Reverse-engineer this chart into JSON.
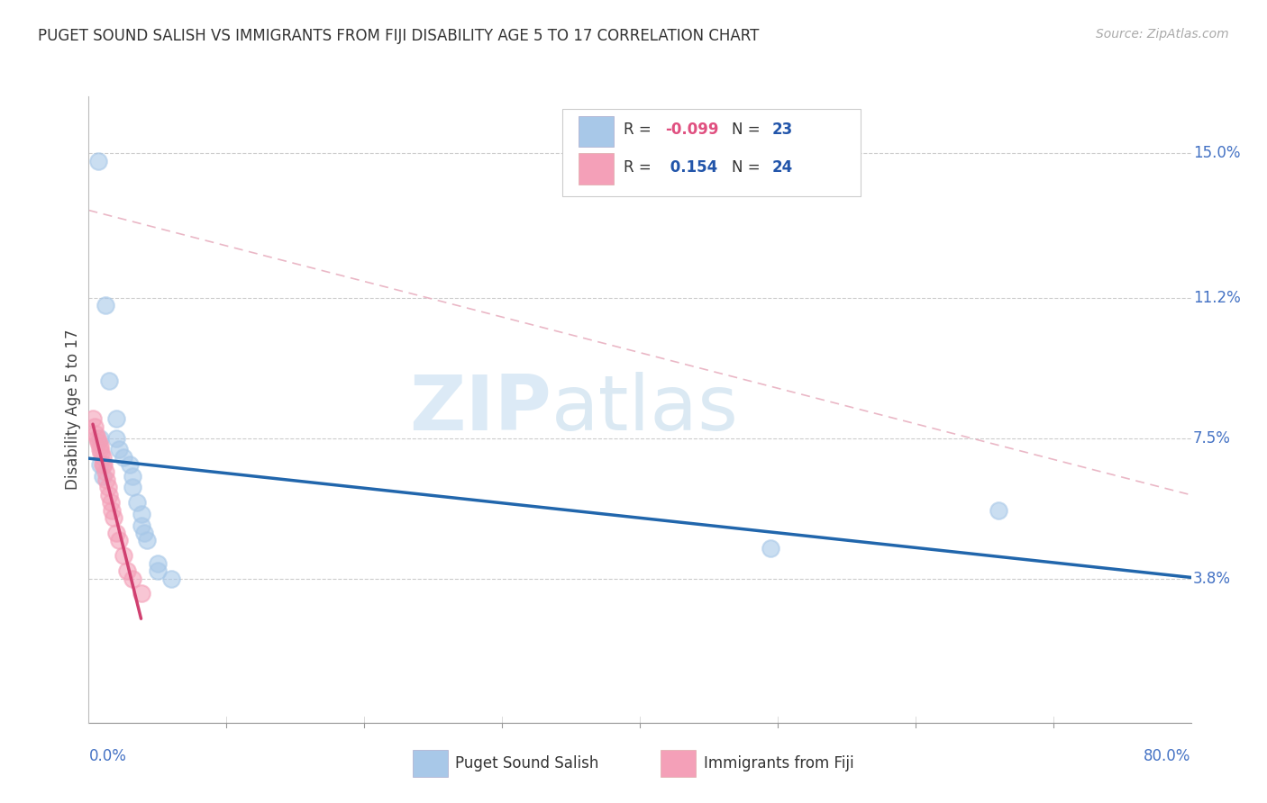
{
  "title": "PUGET SOUND SALISH VS IMMIGRANTS FROM FIJI DISABILITY AGE 5 TO 17 CORRELATION CHART",
  "source": "Source: ZipAtlas.com",
  "ylabel_label": "Disability Age 5 to 17",
  "legend_label1": "Puget Sound Salish",
  "legend_label2": "Immigrants from Fiji",
  "R1": "-0.099",
  "N1": "23",
  "R2": "0.154",
  "N2": "24",
  "color1": "#a8c8e8",
  "color2": "#f4a0b8",
  "trendline1_color": "#2166ac",
  "trendline2_color": "#d04070",
  "diagonal_color": "#d8a8b8",
  "xlim": [
    0.0,
    0.8
  ],
  "ylim": [
    0.0,
    0.165
  ],
  "ytick_vals": [
    0.038,
    0.075,
    0.112,
    0.15
  ],
  "xtick_vals": [
    0.0,
    0.8
  ],
  "puget_x": [
    0.007,
    0.012,
    0.015,
    0.02,
    0.02,
    0.022,
    0.025,
    0.03,
    0.032,
    0.032,
    0.035,
    0.038,
    0.038,
    0.04,
    0.042,
    0.05,
    0.05,
    0.06,
    0.008,
    0.008,
    0.01,
    0.495,
    0.66
  ],
  "puget_y": [
    0.148,
    0.11,
    0.09,
    0.08,
    0.075,
    0.072,
    0.07,
    0.068,
    0.065,
    0.062,
    0.058,
    0.055,
    0.052,
    0.05,
    0.048,
    0.042,
    0.04,
    0.038,
    0.075,
    0.068,
    0.065,
    0.046,
    0.056
  ],
  "fiji_x": [
    0.003,
    0.004,
    0.005,
    0.006,
    0.007,
    0.008,
    0.008,
    0.009,
    0.01,
    0.011,
    0.012,
    0.013,
    0.014,
    0.015,
    0.016,
    0.017,
    0.018,
    0.02,
    0.022,
    0.025,
    0.028,
    0.032,
    0.038,
    0.01
  ],
  "fiji_y": [
    0.08,
    0.078,
    0.076,
    0.075,
    0.074,
    0.073,
    0.072,
    0.071,
    0.07,
    0.068,
    0.066,
    0.064,
    0.062,
    0.06,
    0.058,
    0.056,
    0.054,
    0.05,
    0.048,
    0.044,
    0.04,
    0.038,
    0.034,
    0.068
  ],
  "watermark_zip": "ZIP",
  "watermark_atlas": "atlas",
  "background_color": "#ffffff"
}
